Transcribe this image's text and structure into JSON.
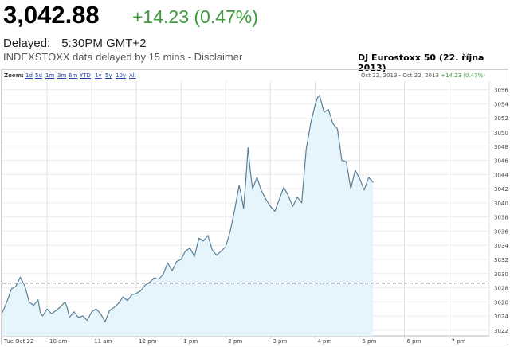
{
  "quote": {
    "price": "3,042.88",
    "change": "+14.23 (0.47%)",
    "delayed_label": "Delayed:",
    "delayed_time": "5:30PM GMT+2",
    "source_note": "INDEXSTOXX data delayed by 15 mins - Disclaimer"
  },
  "caption": "DJ Eurostoxx 50 (22. října 2013)",
  "zoom": {
    "label": "Zoom:",
    "options": [
      "1d",
      "5d",
      "1m",
      "3m",
      "6m",
      "YTD",
      "1y",
      "5y",
      "10y",
      "All"
    ],
    "range_text": "Oct 22, 2013 - Oct 22, 2013",
    "range_change": "+14.23 (0.47%)"
  },
  "colors": {
    "line": "#5b7f97",
    "fill": "#e6f5fc",
    "positive": "#3d9a3d",
    "reference_line": "#555555"
  },
  "chart_data": {
    "type": "area",
    "x_tick_labels": [
      "Tue Oct 22",
      "10 am",
      "11 am",
      "12 pm",
      "1 pm",
      "2 pm",
      "3 pm",
      "4 pm",
      "5 pm",
      "6 pm",
      "7 pm"
    ],
    "y_ticks": [
      3022,
      3024,
      3026,
      3028,
      3030,
      3032,
      3034,
      3036,
      3038,
      3040,
      3042,
      3044,
      3046,
      3048,
      3050,
      3052,
      3054,
      3056
    ],
    "ylim": [
      3021.2,
      3057.2
    ],
    "x_unit": "hours",
    "xlim": [
      9,
      19.9
    ],
    "reference_line": 3028.65,
    "grid": true,
    "series": [
      {
        "x": [
          9.0,
          9.1,
          9.2,
          9.3,
          9.4,
          9.5,
          9.55,
          9.6,
          9.7,
          9.8,
          9.85,
          9.9,
          10.0,
          10.1,
          10.2,
          10.3,
          10.4,
          10.45,
          10.5,
          10.6,
          10.7,
          10.8,
          10.9,
          11.0,
          11.1,
          11.2,
          11.3,
          11.4,
          11.5,
          11.6,
          11.7,
          11.8,
          11.9,
          12.0,
          12.1,
          12.2,
          12.3,
          12.4,
          12.5,
          12.6,
          12.7,
          12.8,
          12.9,
          13.0,
          13.1,
          13.2,
          13.3,
          13.4,
          13.5,
          13.6,
          13.7,
          13.8,
          13.9,
          14.0,
          14.1,
          14.2,
          14.3,
          14.35,
          14.4,
          14.45,
          14.5,
          14.55,
          14.6,
          14.7,
          14.8,
          14.9,
          15.0,
          15.1,
          15.2,
          15.3,
          15.4,
          15.5,
          15.6,
          15.7,
          15.8,
          15.9,
          16.0,
          16.05,
          16.1,
          16.2,
          16.3,
          16.4,
          16.5,
          16.6,
          16.7,
          16.8,
          16.9,
          17.0,
          17.1,
          17.2,
          17.3
        ],
        "values": [
          3024.5,
          3026.0,
          3027.8,
          3028.2,
          3029.5,
          3028.3,
          3027.2,
          3026.0,
          3025.5,
          3026.3,
          3024.5,
          3024.0,
          3025.0,
          3024.3,
          3024.8,
          3025.3,
          3026.0,
          3025.2,
          3023.8,
          3024.6,
          3023.8,
          3024.0,
          3023.4,
          3024.6,
          3025.0,
          3024.3,
          3023.2,
          3024.8,
          3025.2,
          3025.8,
          3026.7,
          3026.2,
          3027.0,
          3027.2,
          3027.6,
          3028.4,
          3028.8,
          3029.4,
          3029.2,
          3029.9,
          3031.5,
          3030.4,
          3031.7,
          3032.0,
          3033.2,
          3033.6,
          3032.4,
          3035.0,
          3034.6,
          3035.4,
          3033.3,
          3032.6,
          3033.2,
          3033.8,
          3036.0,
          3039.0,
          3042.5,
          3041.0,
          3039.2,
          3043.2,
          3047.8,
          3044.5,
          3042.0,
          3043.6,
          3041.7,
          3040.5,
          3039.5,
          3038.8,
          3040.5,
          3042.2,
          3041.0,
          3039.5,
          3040.8,
          3040.0,
          3047.5,
          3051.2,
          3053.8,
          3054.8,
          3055.2,
          3052.8,
          3053.2,
          3051.2,
          3050.5,
          3046.0,
          3045.8,
          3042.0,
          3044.6,
          3043.4,
          3041.8,
          3043.6,
          3042.88
        ]
      }
    ]
  }
}
